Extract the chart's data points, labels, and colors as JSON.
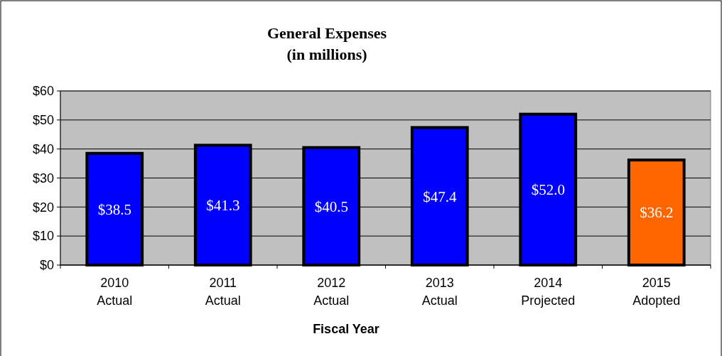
{
  "chart_data": {
    "type": "bar",
    "title": "General Expenses",
    "subtitle": "(in millions)",
    "xlabel": "Fiscal Year",
    "categories": [
      "2010\nActual",
      "2011\nActual",
      "2012\nActual",
      "2013\nActual",
      "2014\nProjected",
      "2015\nAdopted"
    ],
    "values": [
      38.5,
      41.3,
      40.5,
      47.4,
      52.0,
      36.2
    ],
    "colors": [
      "#0000ff",
      "#0000ff",
      "#0000ff",
      "#0000ff",
      "#0000ff",
      "#ff6600"
    ],
    "value_labels": [
      "$38.5",
      "$41.3",
      "$40.5",
      "$47.4",
      "$52.0",
      "$36.2"
    ],
    "ylim": [
      0,
      60
    ],
    "yticks": [
      {
        "value": 0,
        "label": "$0"
      },
      {
        "value": 10,
        "label": "$10"
      },
      {
        "value": 20,
        "label": "$20"
      },
      {
        "value": 30,
        "label": "$30"
      },
      {
        "value": 40,
        "label": "$40"
      },
      {
        "value": 50,
        "label": "$50"
      },
      {
        "value": 60,
        "label": "$60"
      }
    ],
    "grid": "y"
  }
}
